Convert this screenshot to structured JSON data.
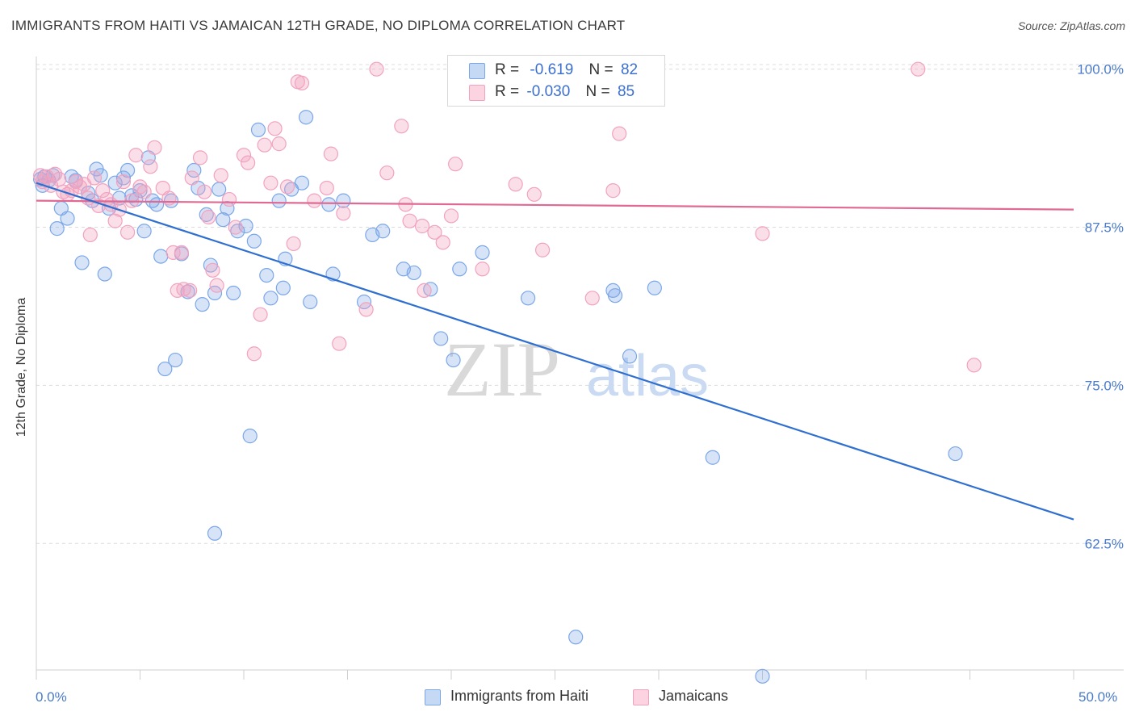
{
  "title": "IMMIGRANTS FROM HAITI VS JAMAICAN 12TH GRADE, NO DIPLOMA CORRELATION CHART",
  "source": "Source: ZipAtlas.com",
  "watermark": {
    "zip": "ZIP",
    "atlas": "atlas"
  },
  "legend": {
    "rows": [
      {
        "r_label": "R =",
        "r_value": "-0.619",
        "n_label": "N =",
        "n_value": "82"
      },
      {
        "r_label": "R =",
        "r_value": "-0.030",
        "n_label": "N =",
        "n_value": "85"
      }
    ]
  },
  "chart_data": {
    "type": "scatter",
    "title": "IMMIGRANTS FROM HAITI VS JAMAICAN 12TH GRADE, NO DIPLOMA CORRELATION CHART",
    "xlabel": "",
    "ylabel": "12th Grade, No Diploma",
    "xlim": [
      0,
      50
    ],
    "ylim": [
      52.5,
      101
    ],
    "x_tick_labels": [
      "0.0%",
      "50.0%"
    ],
    "y_ticks": [
      62.5,
      75.0,
      87.5,
      100.0
    ],
    "y_tick_labels": [
      "62.5%",
      "75.0%",
      "87.5%",
      "100.0%"
    ],
    "grid": true,
    "legend_position": "top-center",
    "colors": {
      "haiti": "#7ba7e8",
      "haiti_line": "#2f6fd0",
      "jamaica": "#f2a2bf",
      "jamaica_line": "#e06a93"
    },
    "series": [
      {
        "name": "Immigrants from Haiti",
        "trend": {
          "x": [
            0,
            50
          ],
          "y": [
            91.0,
            64.4
          ]
        },
        "points": [
          [
            0.2,
            91.3
          ],
          [
            0.3,
            90.8
          ],
          [
            0.4,
            91.5
          ],
          [
            0.6,
            91.2
          ],
          [
            0.8,
            91.6
          ],
          [
            1.0,
            87.4
          ],
          [
            1.2,
            89.0
          ],
          [
            1.5,
            88.2
          ],
          [
            1.7,
            91.5
          ],
          [
            1.9,
            91.2
          ],
          [
            2.2,
            84.7
          ],
          [
            2.5,
            90.2
          ],
          [
            2.7,
            89.6
          ],
          [
            2.9,
            92.1
          ],
          [
            3.1,
            91.6
          ],
          [
            3.3,
            83.8
          ],
          [
            3.5,
            89.0
          ],
          [
            3.8,
            91.0
          ],
          [
            4.0,
            89.8
          ],
          [
            4.2,
            91.4
          ],
          [
            4.4,
            92.0
          ],
          [
            4.6,
            90.0
          ],
          [
            4.8,
            89.7
          ],
          [
            5.0,
            90.4
          ],
          [
            5.2,
            87.2
          ],
          [
            5.4,
            93.0
          ],
          [
            5.6,
            89.6
          ],
          [
            5.8,
            89.3
          ],
          [
            6.0,
            85.2
          ],
          [
            6.2,
            76.3
          ],
          [
            6.5,
            89.6
          ],
          [
            6.7,
            77.0
          ],
          [
            7.0,
            85.4
          ],
          [
            7.3,
            82.4
          ],
          [
            7.6,
            92.0
          ],
          [
            7.8,
            90.6
          ],
          [
            8.0,
            81.4
          ],
          [
            8.2,
            88.5
          ],
          [
            8.4,
            84.5
          ],
          [
            8.6,
            82.3
          ],
          [
            8.8,
            90.5
          ],
          [
            9.0,
            88.1
          ],
          [
            9.2,
            89.0
          ],
          [
            9.5,
            82.3
          ],
          [
            9.7,
            87.2
          ],
          [
            10.1,
            87.6
          ],
          [
            10.3,
            71.0
          ],
          [
            10.5,
            86.4
          ],
          [
            10.7,
            95.2
          ],
          [
            11.1,
            83.7
          ],
          [
            11.3,
            81.9
          ],
          [
            11.7,
            89.6
          ],
          [
            11.9,
            82.7
          ],
          [
            12.0,
            85.0
          ],
          [
            12.3,
            90.5
          ],
          [
            12.8,
            91.0
          ],
          [
            13.0,
            96.2
          ],
          [
            13.2,
            81.6
          ],
          [
            14.1,
            89.3
          ],
          [
            14.3,
            83.8
          ],
          [
            14.8,
            89.6
          ],
          [
            15.8,
            81.6
          ],
          [
            16.2,
            86.9
          ],
          [
            16.7,
            87.2
          ],
          [
            17.7,
            84.2
          ],
          [
            18.2,
            83.9
          ],
          [
            19.0,
            82.6
          ],
          [
            19.5,
            78.7
          ],
          [
            20.1,
            77.0
          ],
          [
            20.4,
            84.2
          ],
          [
            21.5,
            85.5
          ],
          [
            23.7,
            81.9
          ],
          [
            26.0,
            55.1
          ],
          [
            27.8,
            82.5
          ],
          [
            27.9,
            82.1
          ],
          [
            28.6,
            77.3
          ],
          [
            29.2,
            98.0
          ],
          [
            29.8,
            82.7
          ],
          [
            32.6,
            69.3
          ],
          [
            35.0,
            52.0
          ],
          [
            44.3,
            69.6
          ],
          [
            8.6,
            63.3
          ]
        ]
      },
      {
        "name": "Jamaicans",
        "trend": {
          "x": [
            0,
            50
          ],
          "y": [
            89.6,
            88.9
          ]
        },
        "points": [
          [
            0.2,
            91.6
          ],
          [
            0.3,
            91.1
          ],
          [
            0.5,
            91.5
          ],
          [
            0.7,
            90.8
          ],
          [
            0.9,
            91.7
          ],
          [
            1.1,
            91.3
          ],
          [
            1.3,
            90.3
          ],
          [
            1.5,
            90.1
          ],
          [
            1.7,
            90.4
          ],
          [
            1.9,
            91.1
          ],
          [
            2.1,
            90.7
          ],
          [
            2.3,
            90.9
          ],
          [
            2.5,
            89.8
          ],
          [
            2.6,
            86.9
          ],
          [
            2.8,
            91.4
          ],
          [
            3.0,
            89.2
          ],
          [
            3.2,
            90.4
          ],
          [
            3.4,
            89.7
          ],
          [
            3.6,
            89.3
          ],
          [
            3.8,
            88.0
          ],
          [
            4.0,
            88.9
          ],
          [
            4.2,
            91.1
          ],
          [
            4.4,
            87.1
          ],
          [
            4.6,
            89.6
          ],
          [
            4.8,
            93.2
          ],
          [
            5.0,
            90.7
          ],
          [
            5.2,
            90.3
          ],
          [
            5.5,
            92.3
          ],
          [
            5.7,
            93.8
          ],
          [
            6.1,
            90.6
          ],
          [
            6.4,
            89.8
          ],
          [
            6.6,
            85.5
          ],
          [
            6.8,
            82.5
          ],
          [
            7.0,
            85.5
          ],
          [
            7.1,
            82.6
          ],
          [
            7.4,
            82.5
          ],
          [
            7.5,
            91.4
          ],
          [
            7.9,
            93.0
          ],
          [
            8.1,
            90.3
          ],
          [
            8.3,
            88.3
          ],
          [
            8.5,
            84.1
          ],
          [
            8.7,
            82.9
          ],
          [
            8.9,
            91.6
          ],
          [
            9.3,
            89.7
          ],
          [
            9.6,
            87.5
          ],
          [
            10.0,
            93.2
          ],
          [
            10.2,
            92.6
          ],
          [
            10.5,
            77.5
          ],
          [
            10.8,
            80.6
          ],
          [
            11.0,
            94.0
          ],
          [
            11.3,
            91.0
          ],
          [
            11.5,
            95.3
          ],
          [
            11.7,
            94.1
          ],
          [
            12.1,
            90.7
          ],
          [
            12.4,
            86.2
          ],
          [
            12.6,
            99.0
          ],
          [
            12.8,
            98.9
          ],
          [
            13.4,
            89.6
          ],
          [
            14.0,
            90.6
          ],
          [
            14.2,
            93.3
          ],
          [
            14.6,
            78.3
          ],
          [
            14.8,
            88.6
          ],
          [
            15.9,
            81.0
          ],
          [
            16.4,
            100.0
          ],
          [
            16.9,
            91.8
          ],
          [
            17.6,
            95.5
          ],
          [
            17.8,
            89.3
          ],
          [
            18.0,
            88.0
          ],
          [
            18.6,
            87.6
          ],
          [
            18.7,
            82.5
          ],
          [
            19.2,
            87.1
          ],
          [
            19.6,
            86.3
          ],
          [
            20.0,
            88.4
          ],
          [
            20.2,
            92.5
          ],
          [
            21.5,
            84.2
          ],
          [
            23.1,
            90.9
          ],
          [
            24.0,
            90.1
          ],
          [
            24.4,
            85.7
          ],
          [
            26.5,
            100.0
          ],
          [
            26.8,
            81.9
          ],
          [
            27.8,
            90.4
          ],
          [
            28.1,
            94.9
          ],
          [
            35.0,
            87.0
          ],
          [
            42.5,
            100.0
          ],
          [
            45.2,
            76.6
          ]
        ]
      }
    ]
  },
  "bottom_legend": [
    "Immigrants from Haiti",
    "Jamaicans"
  ]
}
